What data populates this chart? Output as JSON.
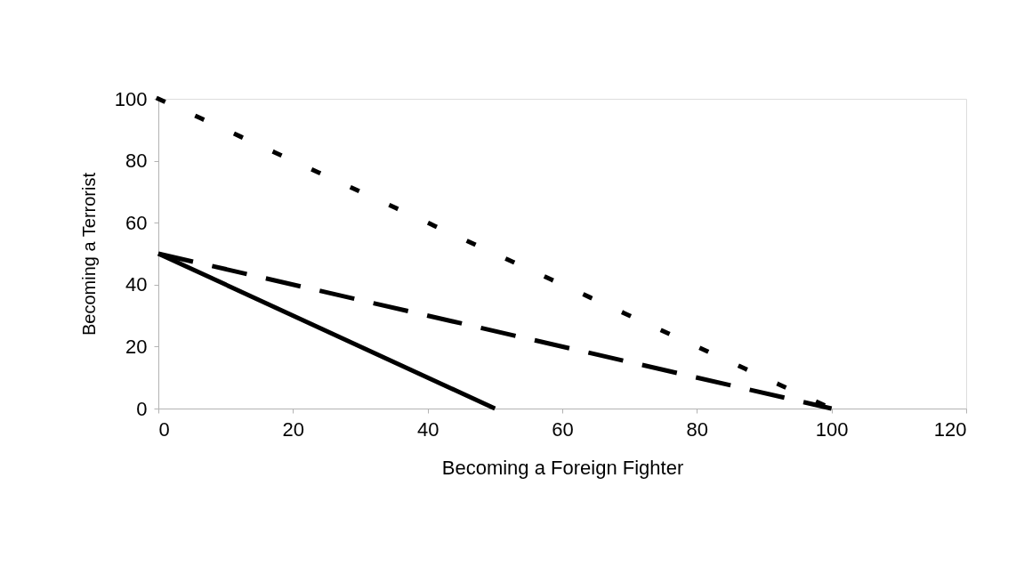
{
  "chart_data": {
    "type": "line",
    "xlabel": "Becoming a Foreign Fighter",
    "ylabel": "Becoming a Terrorist",
    "xlim": [
      0,
      120
    ],
    "xticks": [
      0,
      20,
      40,
      60,
      80,
      100,
      120
    ],
    "ylim": [
      0,
      100
    ],
    "yticks": [
      0,
      20,
      40,
      60,
      80,
      100
    ],
    "grid": false,
    "marker": "none",
    "series": [
      {
        "color": "#000000",
        "line_style": "dotted",
        "x": [
          0,
          100
        ],
        "values": [
          100,
          0
        ]
      },
      {
        "color": "#000000",
        "line_style": "dashed",
        "x": [
          0,
          100
        ],
        "values": [
          50,
          0
        ]
      },
      {
        "color": "#000000",
        "line_style": "solid",
        "x": [
          0,
          50
        ],
        "values": [
          50,
          0
        ]
      }
    ]
  }
}
